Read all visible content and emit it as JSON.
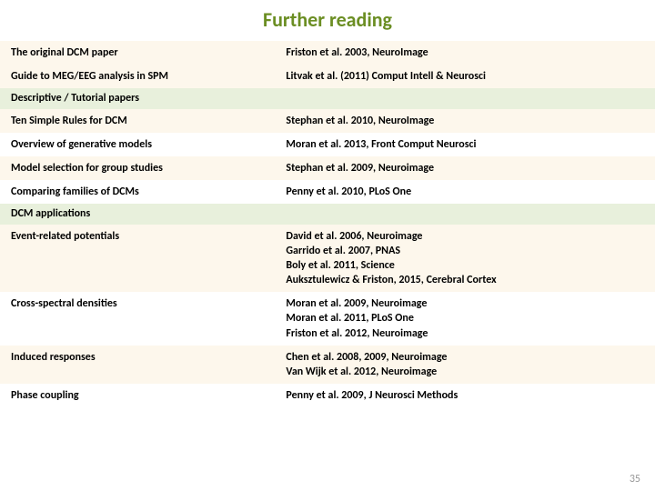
{
  "title": "Further reading",
  "slide_number": "35",
  "colors": {
    "title": "#6b8e23",
    "cream_row": "#fdf7ec",
    "header_row": "#e8f0dc",
    "page_bg": "#ffffff",
    "slidenum": "#999999"
  },
  "typography": {
    "title_fontsize": 22,
    "title_weight": "bold",
    "cell_fontsize": 12,
    "cell_weight": "bold"
  },
  "rows": [
    {
      "type": "cream",
      "c1": "The original DCM paper",
      "c2": "Friston et al. 2003, NeuroImage"
    },
    {
      "type": "cream",
      "c1": "Guide to MEG/EEG analysis in SPM",
      "c2": "Litvak et al. (2011) Comput Intell & Neurosci"
    },
    {
      "type": "header",
      "c1": "Descriptive / Tutorial papers",
      "c2": ""
    },
    {
      "type": "cream",
      "c1": "Ten Simple Rules for DCM",
      "c2": "Stephan et al. 2010, NeuroImage"
    },
    {
      "type": "white",
      "c1": "Overview of generative models",
      "c2": "Moran et al. 2013, Front Comput Neurosci"
    },
    {
      "type": "cream",
      "c1": "Model selection for group studies",
      "c2": "Stephan et al. 2009, Neuroimage"
    },
    {
      "type": "white",
      "c1": "Comparing families of DCMs",
      "c2": "Penny et al. 2010, PLoS One"
    },
    {
      "type": "header",
      "c1": "DCM applications",
      "c2": ""
    },
    {
      "type": "cream",
      "c1": "Event-related potentials",
      "c2": "David et al. 2006, Neuroimage\nGarrido et al. 2007, PNAS\nBoly et al. 2011, Science\nAuksztulewicz & Friston, 2015, Cerebral Cortex"
    },
    {
      "type": "white",
      "c1": "Cross-spectral densities",
      "c2": "Moran et al. 2009, Neuroimage\nMoran et al. 2011, PLoS One\nFriston et al. 2012, Neuroimage"
    },
    {
      "type": "cream",
      "c1": "Induced responses",
      "c2": "Chen et al. 2008, 2009, Neuroimage\nVan Wijk et al. 2012, Neuroimage"
    },
    {
      "type": "white",
      "c1": "Phase coupling",
      "c2": "Penny et al. 2009, J Neurosci Methods"
    }
  ]
}
